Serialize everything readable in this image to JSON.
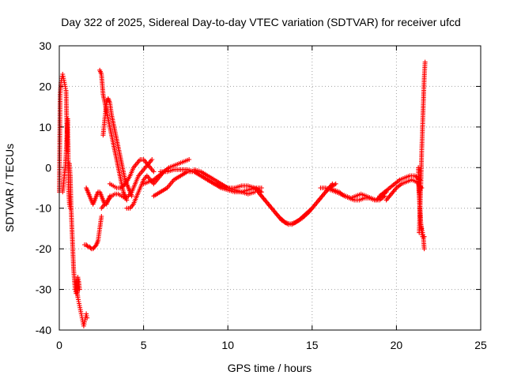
{
  "chart_data": {
    "type": "scatter",
    "title": "Day 322 of 2025, Sidereal Day-to-day VTEC variation (SDTVAR) for receiver ufcd",
    "xlabel": "GPS time / hours",
    "ylabel": "SDTVAR / TECUs",
    "xlim": [
      0,
      25
    ],
    "ylim": [
      -40,
      30
    ],
    "xticks": [
      0,
      5,
      10,
      15,
      20,
      25
    ],
    "yticks": [
      -40,
      -30,
      -20,
      -10,
      0,
      10,
      20,
      30
    ],
    "grid": true,
    "marker": "plus",
    "color": "#ff0000",
    "series": [
      {
        "name": "ufcd",
        "segments": [
          {
            "x": [
              0.0,
              0.05,
              0.1,
              0.15,
              0.2,
              0.25,
              0.3,
              0.35,
              0.4,
              0.45,
              0.5
            ],
            "y": [
              -6,
              18,
              21,
              22,
              23,
              22,
              21,
              20,
              19,
              10,
              4
            ]
          },
          {
            "x": [
              0.2,
              0.25,
              0.3,
              0.35,
              0.4,
              0.45,
              0.5,
              0.55,
              0.6,
              0.65,
              0.7
            ],
            "y": [
              -6,
              -4,
              -2,
              0,
              3,
              8,
              12,
              -5,
              -9,
              -10,
              -10
            ]
          },
          {
            "x": [
              0.6,
              0.65,
              0.7,
              0.75,
              0.8,
              0.85,
              0.9,
              0.95,
              1.0,
              1.05,
              1.1,
              1.15,
              1.2
            ],
            "y": [
              1,
              -2,
              -10,
              -15,
              -20,
              -25,
              -28,
              -30,
              -31,
              -29,
              -27,
              -28,
              -30
            ]
          },
          {
            "x": [
              1.0,
              1.05,
              1.1,
              1.15,
              1.2,
              1.25,
              1.3,
              1.35,
              1.4,
              1.45,
              1.5,
              1.55,
              1.6,
              1.65
            ],
            "y": [
              -28,
              -30,
              -32,
              -33,
              -34,
              -35,
              -36,
              -37,
              -38,
              -39,
              -38,
              -37,
              -36,
              -37
            ]
          },
          {
            "x": [
              1.5,
              1.6,
              1.7,
              1.8,
              1.9,
              2.0,
              2.1,
              2.2,
              2.3,
              2.4,
              2.5
            ],
            "y": [
              -19,
              -19,
              -19.5,
              -19.5,
              -20,
              -20,
              -19.5,
              -19,
              -18,
              -15,
              -12
            ]
          },
          {
            "x": [
              1.6,
              1.7,
              1.8,
              1.9,
              2.0,
              2.1,
              2.2,
              2.3,
              2.4,
              2.5,
              2.6,
              2.7,
              2.8,
              2.9,
              3.0
            ],
            "y": [
              -5,
              -6,
              -7,
              -8,
              -9,
              -8,
              -7,
              -6,
              -6,
              -7,
              -8,
              -9,
              -9,
              -8,
              -7
            ]
          },
          {
            "x": [
              2.4,
              2.5,
              2.6,
              2.7,
              2.8,
              2.9,
              3.0,
              3.1,
              3.2,
              3.3,
              3.4,
              3.5,
              3.6,
              3.7,
              3.8,
              3.9,
              4.0
            ],
            "y": [
              24,
              23,
              18,
              16,
              14,
              12,
              10,
              8,
              6,
              4,
              2,
              0,
              -2,
              -4,
              -6,
              -7,
              -8
            ]
          },
          {
            "x": [
              2.6,
              2.7,
              2.8,
              2.9,
              3.0,
              3.1,
              3.2,
              3.3,
              3.4,
              3.5,
              3.6,
              3.7,
              3.8,
              3.9,
              4.0,
              4.1,
              4.2,
              4.3
            ],
            "y": [
              8,
              12,
              16,
              17,
              16,
              13,
              11,
              9,
              7,
              5,
              3,
              1,
              -1,
              -3,
              -4,
              -5,
              -6,
              -7
            ]
          },
          {
            "x": [
              2.5,
              2.7,
              2.9,
              3.1,
              3.3,
              3.5,
              3.7,
              3.9,
              4.1,
              4.3,
              4.5,
              4.7,
              4.9,
              5.1,
              5.3,
              5.5
            ],
            "y": [
              -10,
              -9,
              -8,
              -7,
              -6.5,
              -6.5,
              -7,
              -7.5,
              -7,
              -6,
              -4,
              -2,
              -1,
              0,
              1,
              2
            ]
          },
          {
            "x": [
              3.0,
              3.2,
              3.4,
              3.6,
              3.8,
              4.0,
              4.2,
              4.4,
              4.6,
              4.8,
              5.0,
              5.2,
              5.4,
              5.6
            ],
            "y": [
              -4,
              -4.5,
              -5,
              -5,
              -4.5,
              -3.5,
              -2,
              0,
              1,
              2,
              2,
              1,
              0,
              -1
            ]
          },
          {
            "x": [
              4.0,
              4.2,
              4.4,
              4.6,
              4.8,
              5.0,
              5.2,
              5.4,
              5.6,
              5.8,
              6.0,
              6.2
            ],
            "y": [
              -10,
              -10,
              -9,
              -7,
              -5,
              -3,
              -2,
              -3,
              -4,
              -3,
              -2,
              -1
            ]
          },
          {
            "x": [
              5.0,
              5.3,
              5.6,
              5.9,
              6.2,
              6.5,
              6.8,
              7.1,
              7.4,
              7.7
            ],
            "y": [
              -4,
              -3.5,
              -3,
              -2,
              -1,
              0,
              0.5,
              1,
              1.5,
              2
            ]
          },
          {
            "x": [
              5.6,
              6.0,
              6.4,
              6.8,
              7.2,
              7.6,
              8.0,
              8.4,
              8.8,
              9.2,
              9.6,
              10.0,
              10.4,
              10.8,
              11.2,
              11.6,
              12.0
            ],
            "y": [
              -7,
              -6,
              -5,
              -3,
              -2,
              -1,
              -1,
              -2,
              -3,
              -4,
              -5,
              -5.5,
              -6,
              -6,
              -5.5,
              -5,
              -5
            ]
          },
          {
            "x": [
              6.0,
              6.4,
              6.8,
              7.2,
              7.6,
              8.0,
              8.4,
              8.8,
              9.2,
              9.6,
              10.0,
              10.4,
              10.8,
              11.2,
              11.6,
              12.0
            ],
            "y": [
              -1,
              -1,
              -0.5,
              -0.5,
              -0.5,
              -1,
              -2,
              -3,
              -4,
              -4.5,
              -5,
              -5,
              -4.5,
              -4.5,
              -5,
              -6
            ]
          },
          {
            "x": [
              8.0,
              8.4,
              8.8,
              9.2,
              9.6,
              10.0,
              10.4,
              10.8,
              11.2,
              11.6
            ],
            "y": [
              -0.5,
              -1,
              -2,
              -3,
              -4,
              -5,
              -5.5,
              -6,
              -6.5,
              -6
            ]
          },
          {
            "x": [
              11.6,
              12.0,
              12.4,
              12.8,
              13.2,
              13.6,
              14.0,
              14.4,
              14.8,
              15.2,
              15.6,
              16.0,
              16.4
            ],
            "y": [
              -5,
              -7,
              -9,
              -11,
              -13,
              -14,
              -13.5,
              -12.5,
              -11,
              -9,
              -7,
              -5,
              -4
            ]
          },
          {
            "x": [
              11.8,
              12.2,
              12.6,
              13.0,
              13.4,
              13.8,
              14.2,
              14.6,
              15.0,
              15.4,
              15.8,
              16.2
            ],
            "y": [
              -6,
              -8,
              -10,
              -12,
              -13.5,
              -14,
              -13,
              -11.5,
              -10,
              -8,
              -6,
              -4
            ]
          },
          {
            "x": [
              15.5,
              15.8,
              16.1,
              16.4,
              16.7,
              17.0,
              17.3,
              17.6,
              17.9,
              18.2,
              18.5,
              18.8,
              19.1,
              19.4
            ],
            "y": [
              -5,
              -5,
              -5.5,
              -6,
              -6.5,
              -7,
              -7.5,
              -7,
              -6.5,
              -7,
              -7.5,
              -8,
              -7,
              -6
            ]
          },
          {
            "x": [
              16.0,
              16.3,
              16.6,
              16.9,
              17.2,
              17.5,
              17.8,
              18.1,
              18.4,
              18.7,
              19.0,
              19.3
            ],
            "y": [
              -5,
              -5.5,
              -6,
              -7,
              -7.5,
              -8,
              -8,
              -7.5,
              -7.5,
              -8,
              -8,
              -7
            ]
          },
          {
            "x": [
              19.0,
              19.3,
              19.6,
              19.9,
              20.2,
              20.5,
              20.8,
              21.1,
              21.4
            ],
            "y": [
              -7,
              -6,
              -5,
              -4,
              -3,
              -2.5,
              -2,
              -2,
              -3
            ]
          },
          {
            "x": [
              19.4,
              19.7,
              20.0,
              20.3,
              20.6,
              20.9,
              21.2,
              21.5
            ],
            "y": [
              -8,
              -6.5,
              -5,
              -4,
              -3.5,
              -3,
              -3.5,
              -5
            ]
          },
          {
            "x": [
              21.3,
              21.35,
              21.4,
              21.45,
              21.5,
              21.55,
              21.6,
              21.65
            ],
            "y": [
              0,
              -5,
              -10,
              -14,
              -16,
              -17,
              -17,
              -17
            ]
          },
          {
            "x": [
              21.3,
              21.35,
              21.4,
              21.45,
              21.5,
              21.55,
              21.6,
              21.65
            ],
            "y": [
              -3,
              -7,
              -11,
              -14,
              -15,
              -16,
              -17,
              -20
            ]
          },
          {
            "x": [
              21.35,
              21.4,
              21.45,
              21.5,
              21.55,
              21.6,
              21.65,
              21.7
            ],
            "y": [
              -16,
              -10,
              -4,
              4,
              10,
              16,
              22,
              26
            ]
          }
        ]
      }
    ]
  }
}
